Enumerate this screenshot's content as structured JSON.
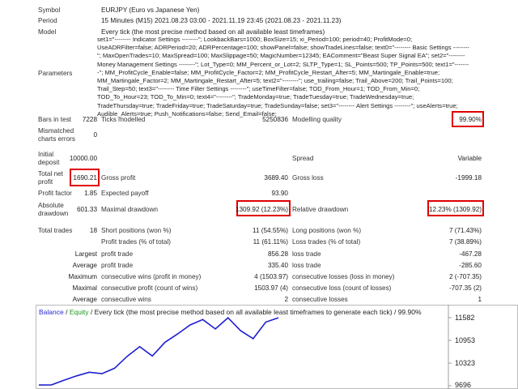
{
  "header": {
    "symbol_label": "Symbol",
    "symbol_value": "EURJPY (Euro vs Japanese Yen)",
    "period_label": "Period",
    "period_value": "15 Minutes (M15) 2021.08.23 03:00 - 2021.11.19 23:45 (2021.08.23 - 2021.11.23)",
    "model_label": "Model",
    "model_value": "Every tick (the most precise method based on all available least timeframes)",
    "parameters_label": "Parameters",
    "parameters_value": "set1=\"-------- Indicator Settings --------\"; LookbackBars=1000; BoxSize=15; xi_Period=100; period=40; ProfitMode=0; UseADRFilter=false; ADRPeriod=20; ADRPercentage=100; showPanel=false; showTradeLines=false; text0=\"-------- Basic Settings --------\"; MaxOpenTrades=10; MaxSpread=100; MaxSlippage=50; MagicNumber=12345; EAComment=\"Beast Super Signal EA\"; set2=\"-------- Money Management Settings --------\"; Lot_Type=0; MM_Percent_or_Lot=2; SLTP_Type=1; SL_Points=500; TP_Points=500; text1=\"--------\"; MM_ProfitCycle_Enable=false; MM_ProfitCycle_Factor=2; MM_ProfitCycle_Restart_After=5; MM_Martingale_Enable=true; MM_Martingale_Factor=2; MM_Martingale_Restart_After=5; text2=\"--------\"; use_trailing=false; Trail_Above=200; Trail_Points=100; Trail_Step=50; text3=\"-------- Time Filter Settings --------\"; useTimeFilter=false; TOD_From_Hour=1; TOD_From_Min=0; TOD_To_Hour=23; TOD_To_Min=0; text4=\"--------\"; TradeMonday=true; TradeTuesday=true; TradeWednesday=true; TradeThursday=true; TradeFriday=true; TradeSaturday=true; TradeSunday=false; set3=\"-------- Alert Settings --------\"; useAlerts=true; Audible_Alerts=true; Push_Notifications=false; Send_Email=false;"
  },
  "stats": {
    "bars_label": "Bars in test",
    "bars_value": "7228",
    "ticks_label": "Ticks modelled",
    "ticks_value": "5250836",
    "quality_label": "Modelling quality",
    "quality_value": "99.90%",
    "mismatch_label1": "Mismatched",
    "mismatch_label2": "charts errors",
    "mismatch_value": "0",
    "deposit_label1": "Initial",
    "deposit_label2": "deposit",
    "deposit_value": "10000.00",
    "spread_label": "Spread",
    "spread_value": "Variable",
    "net_label1": "Total net",
    "net_label2": "profit",
    "net_value": "1690.21",
    "gross_profit_label": "Gross profit",
    "gross_profit_value": "3689.40",
    "gross_loss_label": "Gross loss",
    "gross_loss_value": "-1999.18",
    "pf_label": "Profit factor",
    "pf_value": "1.85",
    "payoff_label": "Expected payoff",
    "payoff_value": "93.90",
    "abs_dd_label1": "Absolute",
    "abs_dd_label2": "drawdown",
    "abs_dd_value": "601.33",
    "max_dd_label": "Maximal drawdown",
    "max_dd_value": "1309.92 (12.23%)",
    "rel_dd_label": "Relative drawdown",
    "rel_dd_value": "12.23% (1309.92)",
    "trades_label": "Total trades",
    "trades_value": "18",
    "short_label": "Short positions (won %)",
    "short_value": "11 (54.55%)",
    "long_label": "Long positions (won %)",
    "long_value": "7 (71.43%)",
    "profit_trades_label": "Profit trades (% of total)",
    "profit_trades_value": "11 (61.11%)",
    "loss_trades_label": "Loss trades (% of total)",
    "loss_trades_value": "7 (38.89%)",
    "largest_label": "Largest",
    "largest_pt_label": "profit trade",
    "largest_pt_value": "856.28",
    "largest_lt_label": "loss trade",
    "largest_lt_value": "-467.28",
    "average_label": "Average",
    "average_pt_label": "profit trade",
    "average_pt_value": "335.40",
    "average_lt_label": "loss trade",
    "average_lt_value": "-285.60",
    "maximum_label": "Maximum",
    "max_cw_label": "consecutive wins (profit in money)",
    "max_cw_value": "4 (1503.97)",
    "max_cl_label": "consecutive losses (loss in money)",
    "max_cl_value": "2 (-707.35)",
    "maximal_label": "Maximal",
    "maxl_cp_label": "consecutive profit (count of wins)",
    "maxl_cp_value": "1503.97 (4)",
    "maxl_cl_label": "consecutive loss (count of losses)",
    "maxl_cl_value": "-707.35 (2)",
    "avg2_label": "Average",
    "avg_cw_label": "consecutive wins",
    "avg_cw_value": "2",
    "avg_cl_label": "consecutive losses",
    "avg_cl_value": "1"
  },
  "chart_legend": {
    "balance": "Balance",
    "slash1": "/",
    "equity": "Equity",
    "rest": "/ Every tick (the most precise method based on all available least timeframes to generate each tick) / 99.90%"
  },
  "colors": {
    "highlight": "#e00000",
    "line": "#1f1fcf",
    "balance": "#2a2ad0",
    "equity": "#1a9a1a"
  },
  "chart_data": {
    "type": "line",
    "y_ticks": [
      "11582",
      "10953",
      "10323",
      "9696"
    ],
    "ylim": [
      9696,
      11582
    ],
    "series": [
      {
        "values": [
          9716,
          9720,
          9850,
          9970,
          10070,
          10030,
          10180,
          10510,
          10780,
          10520,
          10900,
          11130,
          11380,
          11530,
          11270,
          11580,
          11220,
          11000,
          11460,
          11580
        ]
      }
    ]
  }
}
